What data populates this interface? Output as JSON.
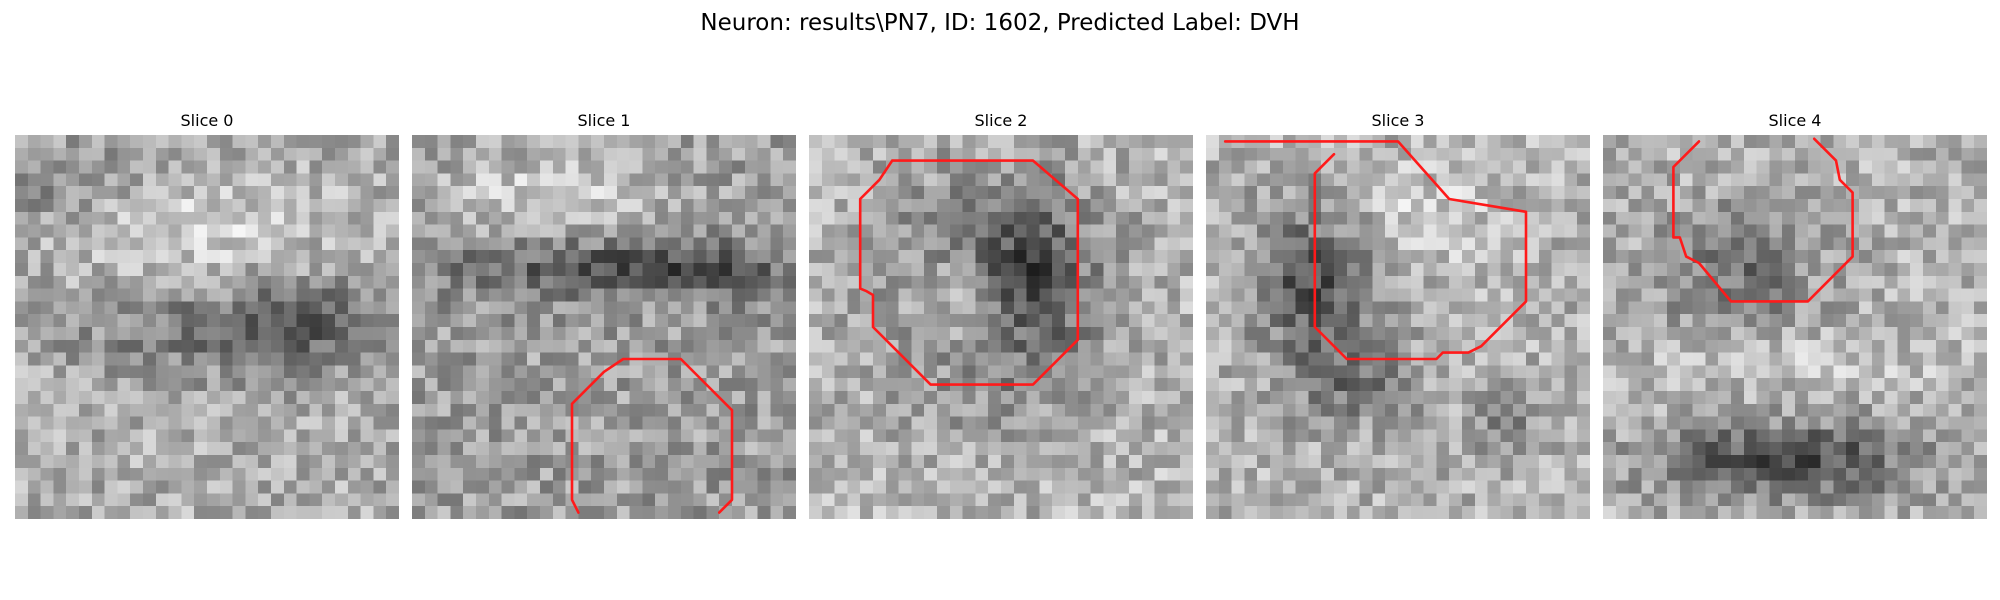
{
  "figure": {
    "suptitle": "Neuron: results\\PN7, ID: 1602, Predicted Label: DVH",
    "contour_color": "#ff1a1a",
    "colormap": "grayscale",
    "slices": [
      {
        "title": "Slice 0",
        "contour": false
      },
      {
        "title": "Slice 1",
        "contour": true
      },
      {
        "title": "Slice 2",
        "contour": true
      },
      {
        "title": "Slice 3",
        "contour": true
      },
      {
        "title": "Slice 4",
        "contour": true
      }
    ]
  }
}
